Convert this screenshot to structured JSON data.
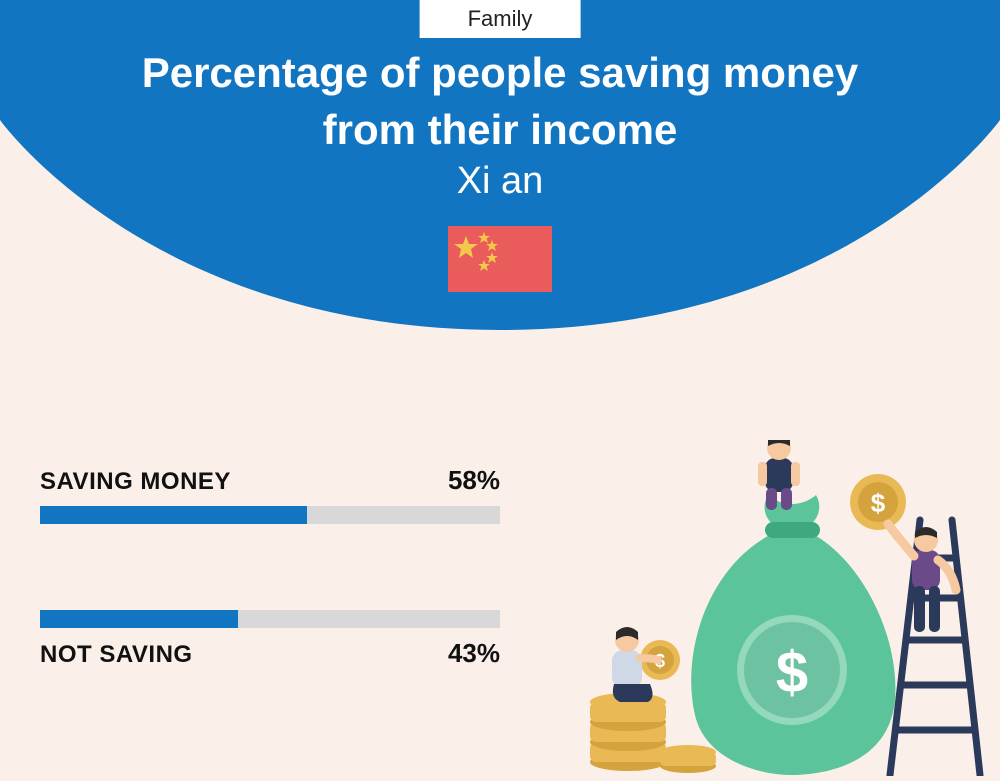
{
  "badge": "Family",
  "title_line1": "Percentage of people saving money",
  "title_line2": "from their income",
  "subtitle": "Xi an",
  "header": {
    "bg_color": "#1275c1",
    "text_color": "#ffffff"
  },
  "page_bg": "#fbf0e9",
  "flag": {
    "bg": "#ea5b5b",
    "star": "#f2c84b"
  },
  "bars": {
    "track_color": "#d8d8d8",
    "fill_color": "#1275c1",
    "saving": {
      "label": "SAVING MONEY",
      "value_text": "58%",
      "percent": 58
    },
    "not_saving": {
      "label": "NOT SAVING",
      "value_text": "43%",
      "percent": 43
    }
  },
  "illustration": {
    "bag_color": "#5bc49a",
    "bag_dark": "#3fa87f",
    "coin_color": "#e9b956",
    "coin_edge": "#d4a33e",
    "ladder_color": "#2b3a5b",
    "person1": {
      "skin": "#f6c9a0",
      "shirt": "#2b3a5b",
      "pants": "#6b4a8a",
      "hair": "#2b2b2b"
    },
    "person2": {
      "skin": "#f6c9a0",
      "shirt": "#6b4a8a",
      "pants": "#2b3a5b",
      "hair": "#2b2b2b"
    },
    "person3": {
      "skin": "#f6c9a0",
      "shirt": "#cfd8e6",
      "pants": "#2b3a5b",
      "hair": "#2b2b2b"
    }
  }
}
